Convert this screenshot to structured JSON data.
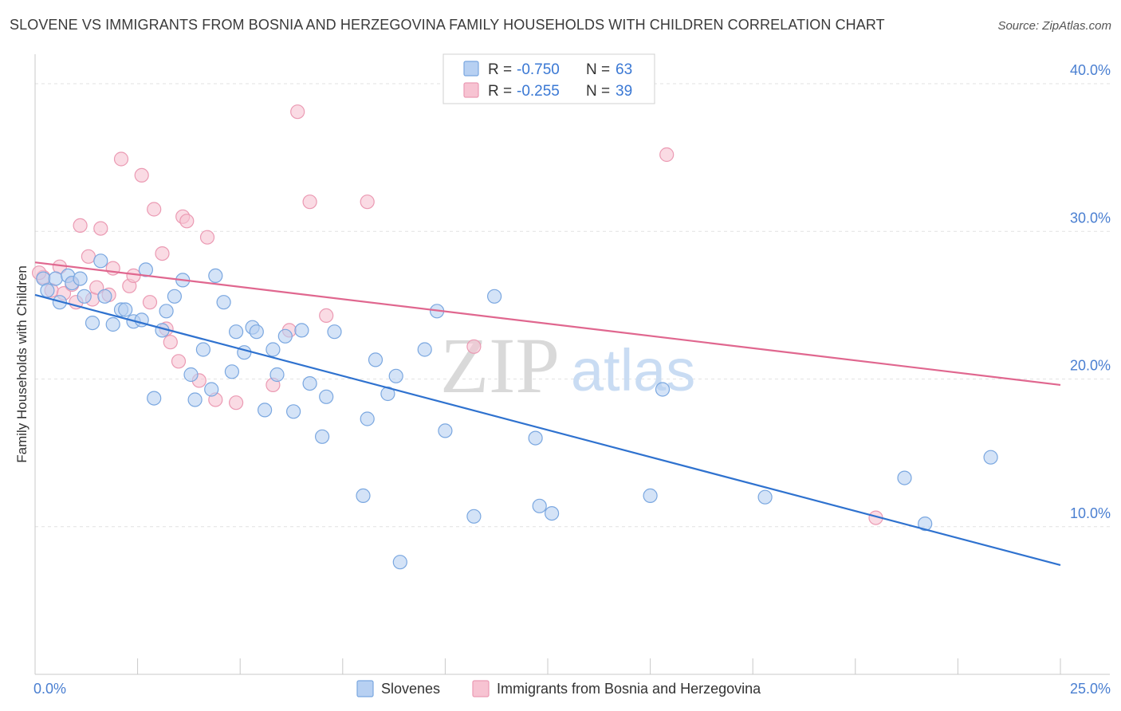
{
  "title": "SLOVENE VS IMMIGRANTS FROM BOSNIA AND HERZEGOVINA FAMILY HOUSEHOLDS WITH CHILDREN CORRELATION CHART",
  "source": "Source: ZipAtlas.com",
  "watermark": {
    "part1": "ZIP",
    "part2": "atlas"
  },
  "colors": {
    "blue_fill": "#b7d0f2",
    "blue_stroke": "#7aa7e0",
    "blue_line": "#2f72cf",
    "pink_fill": "#f7c3d2",
    "pink_stroke": "#eb9ab3",
    "pink_line": "#e0678f",
    "tick_text": "#4a7fd1",
    "grid": "#e2e2e2"
  },
  "legend": {
    "rows": [
      {
        "r_label": "R =",
        "r_value": "-0.750",
        "n_label": "N =",
        "n_value": "63",
        "color": "blue"
      },
      {
        "r_label": "R =",
        "r_value": "-0.255",
        "n_label": "N =",
        "n_value": "39",
        "color": "pink"
      }
    ]
  },
  "bottom_legend": [
    "Slovenes",
    "Immigrants from Bosnia and Herzegovina"
  ],
  "chart_data": {
    "type": "scatter",
    "title": "SLOVENE VS IMMIGRANTS FROM BOSNIA AND HERZEGOVINA FAMILY HOUSEHOLDS WITH CHILDREN CORRELATION CHART",
    "xlabel": "",
    "ylabel": "Family Households with Children",
    "xlim": [
      0,
      25
    ],
    "ylim": [
      0,
      42
    ],
    "x_tick_labels": [
      "0.0%",
      "25.0%"
    ],
    "y_ticks": [
      10,
      20,
      30,
      40
    ],
    "y_tick_labels": [
      "10.0%",
      "20.0%",
      "30.0%",
      "40.0%"
    ],
    "grid": true,
    "legend_position": "top-center",
    "series": [
      {
        "name": "Slovenes",
        "color": "blue",
        "r": -0.75,
        "n": 63,
        "trend": {
          "x": [
            0,
            25
          ],
          "y": [
            25.7,
            7.4
          ]
        },
        "points": [
          [
            0.2,
            26.8
          ],
          [
            0.3,
            26.0
          ],
          [
            0.5,
            26.8
          ],
          [
            0.6,
            25.2
          ],
          [
            0.8,
            27.0
          ],
          [
            0.9,
            26.5
          ],
          [
            1.1,
            26.8
          ],
          [
            1.2,
            25.6
          ],
          [
            1.4,
            23.8
          ],
          [
            1.6,
            28.0
          ],
          [
            1.7,
            25.6
          ],
          [
            1.9,
            23.7
          ],
          [
            2.1,
            24.7
          ],
          [
            2.2,
            24.7
          ],
          [
            2.4,
            23.9
          ],
          [
            2.6,
            24.0
          ],
          [
            2.7,
            27.4
          ],
          [
            2.9,
            18.7
          ],
          [
            3.1,
            23.3
          ],
          [
            3.2,
            24.6
          ],
          [
            3.4,
            25.6
          ],
          [
            3.6,
            26.7
          ],
          [
            3.8,
            20.3
          ],
          [
            3.9,
            18.6
          ],
          [
            4.1,
            22.0
          ],
          [
            4.3,
            19.3
          ],
          [
            4.4,
            27.0
          ],
          [
            4.6,
            25.2
          ],
          [
            4.8,
            20.5
          ],
          [
            4.9,
            23.2
          ],
          [
            5.1,
            21.8
          ],
          [
            5.3,
            23.5
          ],
          [
            5.4,
            23.2
          ],
          [
            5.6,
            17.9
          ],
          [
            5.8,
            22.0
          ],
          [
            5.9,
            20.3
          ],
          [
            6.1,
            22.9
          ],
          [
            6.3,
            17.8
          ],
          [
            6.5,
            23.3
          ],
          [
            6.7,
            19.7
          ],
          [
            7.0,
            16.1
          ],
          [
            7.1,
            18.8
          ],
          [
            7.3,
            23.2
          ],
          [
            8.0,
            12.1
          ],
          [
            8.1,
            17.3
          ],
          [
            8.3,
            21.3
          ],
          [
            8.6,
            19.0
          ],
          [
            8.8,
            20.2
          ],
          [
            8.9,
            7.6
          ],
          [
            9.5,
            22.0
          ],
          [
            9.8,
            24.6
          ],
          [
            10.0,
            16.5
          ],
          [
            10.7,
            10.7
          ],
          [
            11.2,
            25.6
          ],
          [
            12.2,
            16.0
          ],
          [
            12.3,
            11.4
          ],
          [
            12.6,
            10.9
          ],
          [
            15.0,
            12.1
          ],
          [
            15.3,
            19.3
          ],
          [
            17.8,
            12.0
          ],
          [
            21.2,
            13.3
          ],
          [
            21.7,
            10.2
          ],
          [
            23.3,
            14.7
          ]
        ]
      },
      {
        "name": "Immigrants from Bosnia and Herzegovina",
        "color": "pink",
        "r": -0.255,
        "n": 39,
        "trend": {
          "x": [
            0,
            25
          ],
          "y": [
            27.9,
            19.6
          ]
        },
        "points": [
          [
            0.2,
            26.9
          ],
          [
            0.4,
            26.0
          ],
          [
            0.6,
            27.6
          ],
          [
            0.7,
            25.8
          ],
          [
            0.9,
            26.4
          ],
          [
            1.0,
            25.2
          ],
          [
            1.1,
            30.4
          ],
          [
            1.3,
            28.3
          ],
          [
            1.4,
            25.4
          ],
          [
            1.5,
            26.2
          ],
          [
            1.6,
            30.2
          ],
          [
            1.8,
            25.7
          ],
          [
            1.9,
            27.5
          ],
          [
            2.1,
            34.9
          ],
          [
            2.3,
            26.3
          ],
          [
            2.4,
            27.0
          ],
          [
            2.6,
            33.8
          ],
          [
            2.8,
            25.2
          ],
          [
            2.9,
            31.5
          ],
          [
            3.1,
            28.5
          ],
          [
            3.2,
            23.4
          ],
          [
            3.3,
            22.5
          ],
          [
            3.5,
            21.2
          ],
          [
            3.6,
            31.0
          ],
          [
            3.7,
            30.7
          ],
          [
            4.0,
            19.9
          ],
          [
            4.2,
            29.6
          ],
          [
            4.4,
            18.6
          ],
          [
            4.9,
            18.4
          ],
          [
            5.8,
            19.6
          ],
          [
            6.2,
            23.3
          ],
          [
            6.4,
            38.1
          ],
          [
            6.7,
            32.0
          ],
          [
            7.1,
            24.3
          ],
          [
            8.1,
            32.0
          ],
          [
            10.7,
            22.2
          ],
          [
            15.4,
            35.2
          ],
          [
            20.5,
            10.6
          ],
          [
            0.1,
            27.2
          ]
        ]
      }
    ]
  }
}
